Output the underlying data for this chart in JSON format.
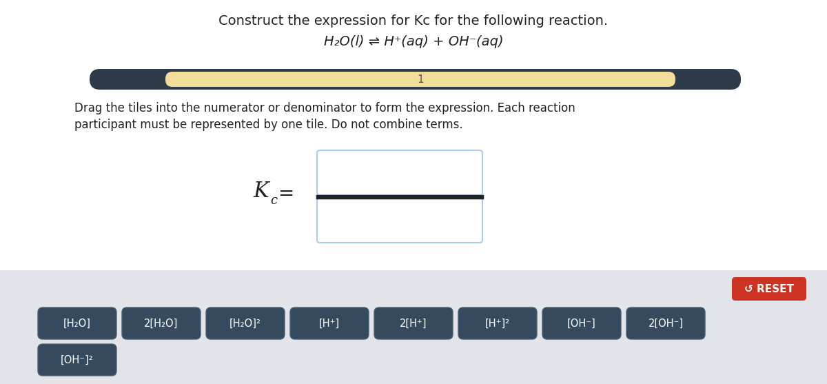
{
  "title": "Construct the expression for Kc for the following reaction.",
  "reaction": "H₂O(l) ⇌ H⁺(aq) + OH⁻(aq)",
  "progress_value": "1",
  "instruction_line1": "Drag the tiles into the numerator or denominator to form the expression. Each reaction",
  "instruction_line2": "participant must be represented by one tile. Do not combine terms.",
  "bg_color": "#ffffff",
  "bottom_bg_color": "#e2e4e9",
  "progress_bar_bg": "#2d3a4a",
  "progress_bar_fill": "#f0de9a",
  "reset_bg": "#cc3322",
  "reset_text": "↺ RESET",
  "tile_color": "#354a5e",
  "tile_border_color": "#4a6070",
  "tile_text_color": "#ffffff",
  "tiles_row1": [
    "[H₂O]",
    "2[H₂O]",
    "[H₂O]²",
    "[H⁺]",
    "2[H⁺]",
    "[H⁺]²",
    "[OH⁻]",
    "2[OH⁻]"
  ],
  "tiles_row2": [
    "[OH⁻]²"
  ],
  "box_border_color": "#aaccee",
  "fraction_line_color": "#222222",
  "kc_color": "#222222"
}
